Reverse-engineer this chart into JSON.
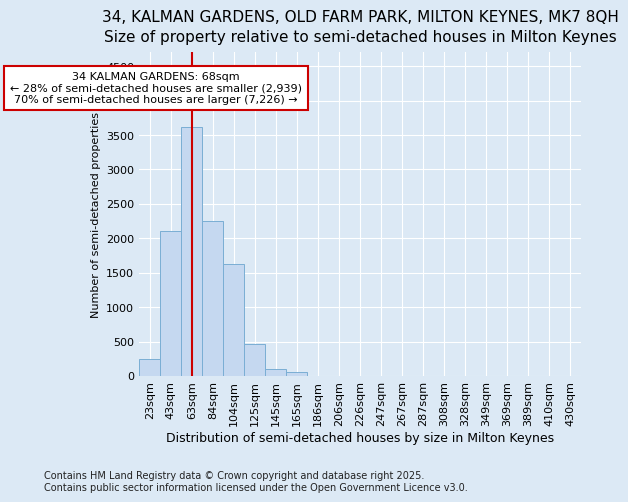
{
  "title_line1": "34, KALMAN GARDENS, OLD FARM PARK, MILTON KEYNES, MK7 8QH",
  "title_line2": "Size of property relative to semi-detached houses in Milton Keynes",
  "xlabel": "Distribution of semi-detached houses by size in Milton Keynes",
  "ylabel": "Number of semi-detached properties",
  "footer_line1": "Contains HM Land Registry data © Crown copyright and database right 2025.",
  "footer_line2": "Contains public sector information licensed under the Open Government Licence v3.0.",
  "categories": [
    "23sqm",
    "43sqm",
    "63sqm",
    "84sqm",
    "104sqm",
    "125sqm",
    "145sqm",
    "165sqm",
    "186sqm",
    "206sqm",
    "226sqm",
    "247sqm",
    "267sqm",
    "287sqm",
    "308sqm",
    "328sqm",
    "349sqm",
    "369sqm",
    "389sqm",
    "410sqm",
    "430sqm"
  ],
  "values": [
    250,
    2100,
    3620,
    2250,
    1620,
    460,
    100,
    55,
    0,
    0,
    0,
    0,
    0,
    0,
    0,
    0,
    0,
    0,
    0,
    0,
    0
  ],
  "bar_color": "#c5d8f0",
  "bar_edge_color": "#7aaed4",
  "property_bin_index": 2,
  "vline_color": "#cc0000",
  "annotation_line1": "34 KALMAN GARDENS: 68sqm",
  "annotation_line2": "← 28% of semi-detached houses are smaller (2,939)",
  "annotation_line3": "70% of semi-detached houses are larger (7,226) →",
  "annotation_box_color": "#cc0000",
  "annotation_bg": "#ffffff",
  "ylim": [
    0,
    4700
  ],
  "yticks": [
    0,
    500,
    1000,
    1500,
    2000,
    2500,
    3000,
    3500,
    4000,
    4500
  ],
  "background_color": "#dce9f5",
  "grid_color": "#ffffff",
  "title1_fontsize": 11,
  "title2_fontsize": 10,
  "xlabel_fontsize": 9,
  "ylabel_fontsize": 8,
  "tick_fontsize": 8,
  "annotation_fontsize": 8,
  "footer_fontsize": 7
}
